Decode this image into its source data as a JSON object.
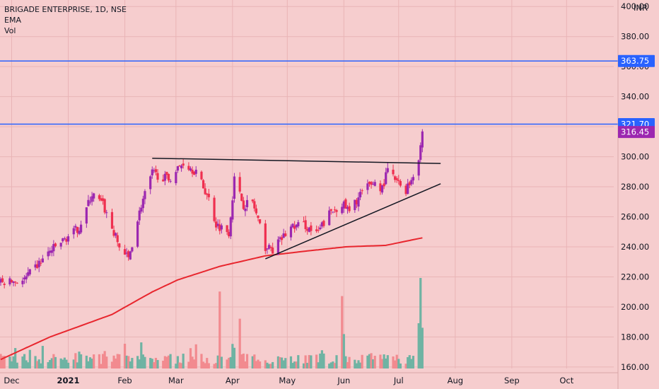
{
  "chart_data": {
    "type": "candlestick",
    "symbol_line": "BRIGADE ENTERPRISE, 1D, NSE",
    "indicators": [
      "EMA",
      "Vol"
    ],
    "currency": "INR",
    "y_ticks": [
      160,
      180,
      200,
      220,
      240,
      260,
      280,
      300,
      320,
      340,
      360,
      380,
      400
    ],
    "y_tick_labels": [
      "160.00",
      "180.00",
      "200.00",
      "220.00",
      "240.00",
      "260.00",
      "280.00",
      "300.00",
      "320.00",
      "340.00",
      "360.00",
      "380.00",
      "400.00"
    ],
    "ylim": [
      159,
      402
    ],
    "x_tick_labels": [
      "Dec",
      "2021",
      "Feb",
      "Mar",
      "Apr",
      "May",
      "Jun",
      "Jul",
      "Aug",
      "Sep",
      "Oct"
    ],
    "horizontal_levels": [
      {
        "label": "363.75",
        "value": 363.75,
        "color": "#2962ff"
      },
      {
        "label": "321.70",
        "value": 321.7,
        "color": "#2962ff"
      }
    ],
    "last_price": {
      "label": "316.45",
      "value": 316.45,
      "color": "#9c27b0"
    },
    "trend_lines": [
      {
        "name": "resistance",
        "from": {
          "x": "2021-02-16",
          "y": 299
        },
        "to": {
          "x": "2021-07-24",
          "y": 295.5
        }
      },
      {
        "name": "support",
        "from": {
          "x": "2021-04-19",
          "y": 232
        },
        "to": {
          "x": "2021-07-24",
          "y": 282
        }
      }
    ],
    "ema_anchors": [
      {
        "x": "2020-11-25",
        "y": 165
      },
      {
        "x": "2020-12-22",
        "y": 180
      },
      {
        "x": "2021-01-25",
        "y": 195
      },
      {
        "x": "2021-02-16",
        "y": 210
      },
      {
        "x": "2021-03-02",
        "y": 218
      },
      {
        "x": "2021-03-25",
        "y": 227
      },
      {
        "x": "2021-04-19",
        "y": 234
      },
      {
        "x": "2021-05-10",
        "y": 237
      },
      {
        "x": "2021-06-02",
        "y": 240
      },
      {
        "x": "2021-06-24",
        "y": 241
      },
      {
        "x": "2021-07-14",
        "y": 246
      }
    ],
    "price_anchors": [
      {
        "x": "2020-11-25",
        "y": 216
      },
      {
        "x": "2020-12-08",
        "y": 218
      },
      {
        "x": "2020-12-22",
        "y": 237
      },
      {
        "x": "2021-01-07",
        "y": 253
      },
      {
        "x": "2021-01-14",
        "y": 275
      },
      {
        "x": "2021-01-20",
        "y": 268
      },
      {
        "x": "2021-01-29",
        "y": 240
      },
      {
        "x": "2021-02-03",
        "y": 232
      },
      {
        "x": "2021-02-10",
        "y": 268
      },
      {
        "x": "2021-02-16",
        "y": 289
      },
      {
        "x": "2021-02-25",
        "y": 285
      },
      {
        "x": "2021-03-05",
        "y": 296
      },
      {
        "x": "2021-03-12",
        "y": 290
      },
      {
        "x": "2021-03-19",
        "y": 272
      },
      {
        "x": "2021-03-23",
        "y": 255
      },
      {
        "x": "2021-03-30",
        "y": 250
      },
      {
        "x": "2021-04-02",
        "y": 285
      },
      {
        "x": "2021-04-07",
        "y": 268
      },
      {
        "x": "2021-04-12",
        "y": 270
      },
      {
        "x": "2021-04-19",
        "y": 240
      },
      {
        "x": "2021-04-23",
        "y": 238
      },
      {
        "x": "2021-05-03",
        "y": 253
      },
      {
        "x": "2021-05-10",
        "y": 255
      },
      {
        "x": "2021-05-17",
        "y": 248
      },
      {
        "x": "2021-05-24",
        "y": 262
      },
      {
        "x": "2021-05-31",
        "y": 269
      },
      {
        "x": "2021-06-04",
        "y": 263
      },
      {
        "x": "2021-06-10",
        "y": 275
      },
      {
        "x": "2021-06-17",
        "y": 283
      },
      {
        "x": "2021-06-22",
        "y": 279
      },
      {
        "x": "2021-06-25",
        "y": 291
      },
      {
        "x": "2021-06-30",
        "y": 283
      },
      {
        "x": "2021-07-05",
        "y": 278
      },
      {
        "x": "2021-07-08",
        "y": 285
      },
      {
        "x": "2021-07-12",
        "y": 300
      },
      {
        "x": "2021-07-14",
        "y": 316.45
      }
    ],
    "volume_spikes": [
      {
        "x": "2021-03-25",
        "level": 0.85,
        "up": false
      },
      {
        "x": "2021-04-05",
        "level": 0.55,
        "up": false
      },
      {
        "x": "2021-05-31",
        "level": 0.8,
        "up": false
      },
      {
        "x": "2021-06-01",
        "level": 0.38,
        "up": true
      },
      {
        "x": "2021-07-12",
        "level": 0.5,
        "up": true
      },
      {
        "x": "2021-07-13",
        "level": 1.0,
        "up": true
      },
      {
        "x": "2021-07-14",
        "level": 0.45,
        "up": true
      }
    ],
    "colors": {
      "background": "#f6cdce",
      "up": "#9c27b0",
      "down": "#ef2f4f",
      "vol_up": "#6fb3a3",
      "vol_down": "#f28a8f",
      "ema": "#e8262e",
      "grid": "#e9b4b6",
      "text": "#131722"
    }
  }
}
